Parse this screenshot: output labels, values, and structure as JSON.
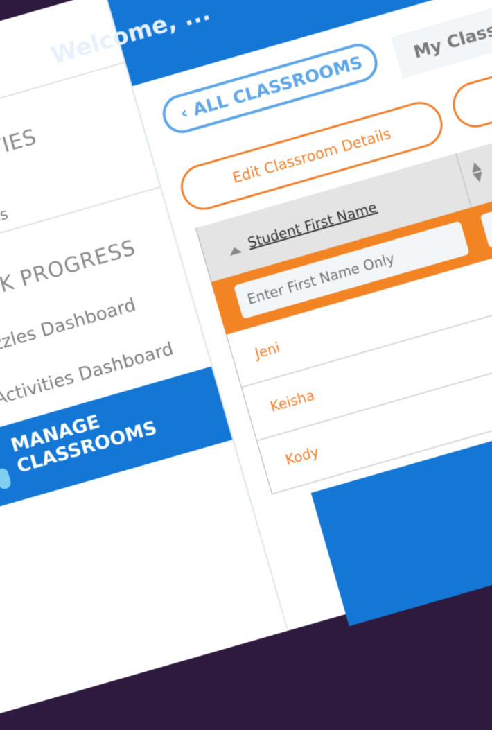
{
  "header": {
    "welcome": "Welcome, ..."
  },
  "sidebar": {
    "sections": [
      {
        "label": "ACTIVITIES",
        "items": [
          {
            "label": "Activities"
          }
        ]
      },
      {
        "label": "TRACK PROGRESS",
        "items": [
          {
            "label": "Puzzles Dashboard"
          },
          {
            "label": "Activities Dashboard"
          }
        ]
      }
    ],
    "active": {
      "label_line1": "MANAGE",
      "label_line2": "CLASSROOMS",
      "icon": "users-icon"
    }
  },
  "main": {
    "back_button": "ALL CLASSROOMS",
    "back_icon": "chevron-left-icon",
    "tab": "My Classrooms",
    "edit_button": "Edit Classroom Details",
    "table": {
      "column_header": "Student First Name",
      "filter_placeholder": "Enter First Name Only",
      "rows": [
        "Jeni",
        "Keisha",
        "Kody"
      ]
    }
  },
  "colors": {
    "primary": "#1477d6",
    "accent": "#f28424",
    "secondary_button": "#5ea6e8"
  }
}
